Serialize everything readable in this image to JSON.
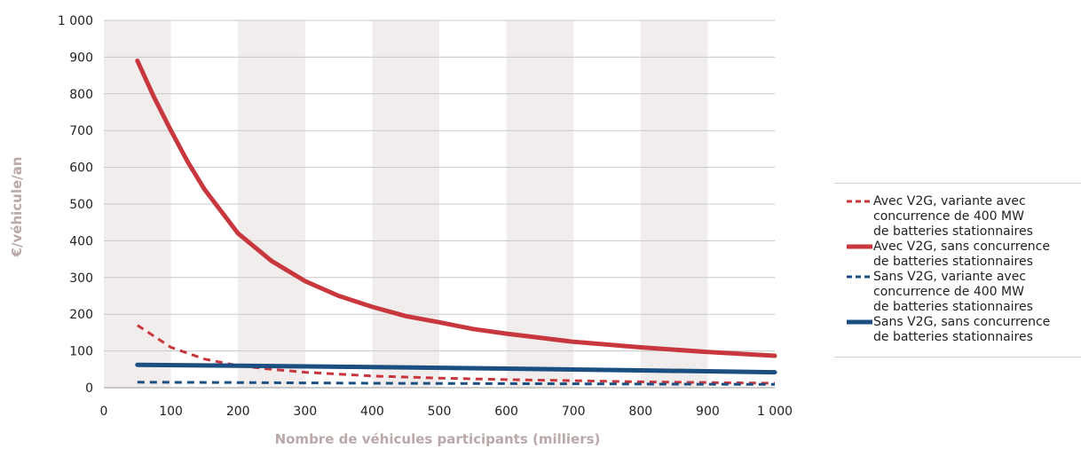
{
  "chart_data": {
    "type": "line",
    "title": "",
    "xlabel": "Nombre de véhicules participants (milliers)",
    "ylabel": "€/véhicule/an",
    "xlim": [
      0,
      1000
    ],
    "ylim": [
      0,
      1000
    ],
    "x_ticks": [
      "0",
      "100",
      "200",
      "300",
      "400",
      "500",
      "600",
      "700",
      "800",
      "900",
      "1 000"
    ],
    "y_ticks": [
      "0",
      "100",
      "200",
      "300",
      "400",
      "500",
      "600",
      "700",
      "800",
      "900",
      "1 000"
    ],
    "grid": "horizontal",
    "band_shading": "alternating vertical bands every 100",
    "legend_position": "right",
    "series": [
      {
        "name": "Avec V2G, variante avec\nconcurrence de 400 MW\nde batteries stationnaires",
        "color": "#c8373e",
        "style": "dashed",
        "x": [
          50,
          100,
          150,
          200,
          250,
          300,
          400,
          500,
          600,
          700,
          800,
          900,
          1000
        ],
        "y": [
          170,
          110,
          78,
          60,
          50,
          42,
          32,
          26,
          22,
          19,
          16,
          14,
          12
        ]
      },
      {
        "name": "Avec V2G, sans concurrence\nde batteries stationnaires",
        "color": "#c8373e",
        "style": "solid",
        "x": [
          50,
          75,
          100,
          125,
          150,
          200,
          250,
          300,
          350,
          400,
          450,
          500,
          550,
          600,
          700,
          800,
          900,
          1000
        ],
        "y": [
          890,
          790,
          700,
          615,
          540,
          420,
          345,
          290,
          250,
          220,
          195,
          178,
          160,
          147,
          125,
          110,
          97,
          87
        ]
      },
      {
        "name": "Sans V2G, variante avec\nconcurrence de 400 MW\nde batteries stationnaires",
        "color": "#1b4f82",
        "style": "dashed",
        "x": [
          50,
          200,
          400,
          600,
          800,
          1000
        ],
        "y": [
          15,
          14,
          12,
          11,
          10,
          9
        ]
      },
      {
        "name": "Sans V2G, sans concurrence\nde batteries stationnaires",
        "color": "#1b4f82",
        "style": "solid",
        "x": [
          50,
          200,
          400,
          600,
          800,
          1000
        ],
        "y": [
          62,
          60,
          56,
          52,
          47,
          42
        ]
      }
    ]
  }
}
